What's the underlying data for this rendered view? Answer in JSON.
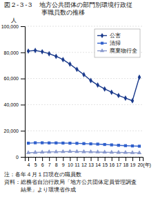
{
  "chart_data": {
    "type": "line",
    "title": "図２-３-３　地方公共団体の部門別環境行政従",
    "subtitle": "　　　　　　事職員数の推移",
    "ylabel": "人",
    "annotations": [
      "注：各年４月１日現在の職員数",
      "資料：総務省自治行政局「地方公共団体定員管理調査",
      "　　　結果」より環境省作成"
    ],
    "categories": [
      "4",
      "5",
      "6",
      "7",
      "8",
      "9",
      "10",
      "11",
      "12",
      "13",
      "14",
      "15",
      "16",
      "17",
      "18",
      "19",
      "20(年)"
    ],
    "series": [
      {
        "name": "公害",
        "color": "#1a3a8c",
        "marker": "diamond",
        "values": [
          81000,
          81500,
          80500,
          79000,
          77000,
          74500,
          71000,
          67000,
          63000,
          58500,
          55000,
          52000,
          49500,
          47000,
          45000,
          43000,
          61000
        ]
      },
      {
        "name": "清掃",
        "color": "#3060cc",
        "marker": "square",
        "values": [
          10500,
          10800,
          10800,
          10700,
          10700,
          10600,
          10500,
          10400,
          10200,
          10000,
          9800,
          9500,
          9200,
          8900,
          8600,
          8400,
          8200
        ]
      },
      {
        "name": "廃棄物行全",
        "color": "#8898cc",
        "marker": "triangle",
        "values": [
          3200,
          3400,
          3600,
          3800,
          3900,
          4000,
          4100,
          4050,
          3950,
          3850,
          3700,
          3600,
          3500,
          3400,
          3300,
          3200,
          3100
        ]
      }
    ],
    "ylim": [
      0,
      100000
    ],
    "yticks": [
      0,
      {
        "value": 20000,
        "label": "20,000"
      },
      {
        "value": 40000,
        "label": "40,000"
      },
      {
        "value": 60000,
        "label": "60,000"
      },
      {
        "value": 80000,
        "label": "80,000"
      },
      {
        "value": 100000,
        "label": "100,000"
      }
    ],
    "grid": true,
    "legend": "upper right"
  }
}
